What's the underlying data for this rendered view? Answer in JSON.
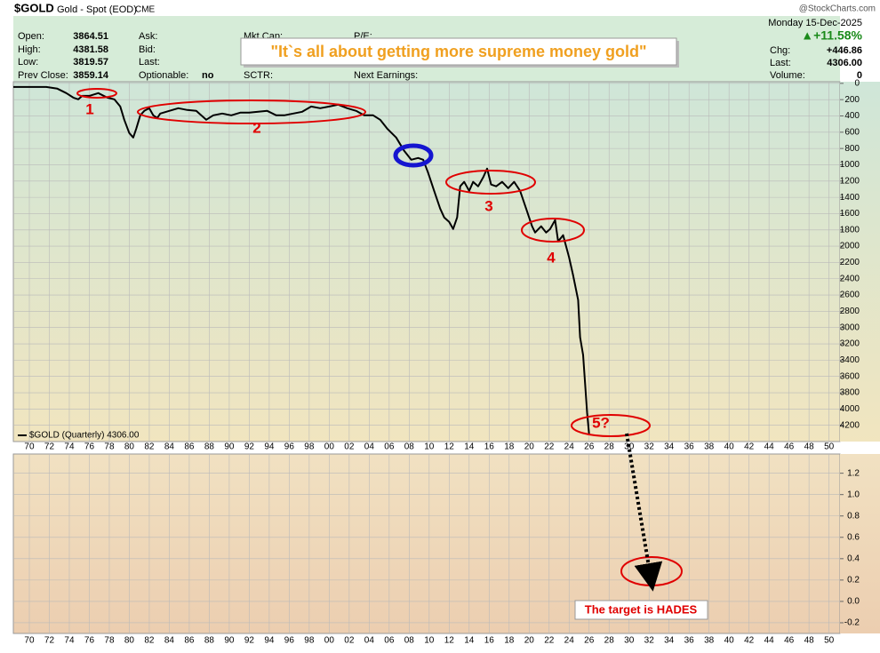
{
  "header": {
    "symbol": "$GOLD",
    "name": "Gold - Spot (EOD)",
    "exchange": "CME",
    "watermark": "@StockCharts.com",
    "date": "Monday  15-Dec-2025",
    "change_pct": "▲+11.58%",
    "open_label": "Open:",
    "open": "3864.51",
    "high_label": "High:",
    "high": "4381.58",
    "low_label": "Low:",
    "low": "3819.57",
    "prev_close_label": "Prev Close:",
    "prev_close": "3859.14",
    "ask_label": "Ask:",
    "bid_label": "Bid:",
    "last_label": "Last:",
    "optionable_label": "Optionable:",
    "optionable": "no",
    "mkt_cap_label": "Mkt Cap:",
    "sctr_label": "SCTR:",
    "pe_label": "P/E:",
    "next_earnings_label": "Next Earnings:",
    "chg_label": "Chg:",
    "chg": "+446.86",
    "last2_label": "Last:",
    "last": "4306.00",
    "volume_label": "Volume:",
    "volume": "0",
    "quote": "\"It`s all about getting more supreme money gold\""
  },
  "chart_data": [
    {
      "type": "line",
      "legend_text": "$GOLD (Quarterly) 4306.00",
      "annotations": [
        "1",
        "2",
        "3",
        "4",
        "5?"
      ],
      "x": [
        1968.4,
        1971.7,
        1972.8,
        1973.7,
        1974.4,
        1974.9,
        1975.3,
        1976.0,
        1976.9,
        1977.8,
        1978.5,
        1979.1,
        1979.5,
        1980.0,
        1980.4,
        1980.7,
        1981.1,
        1981.5,
        1982.0,
        1982.4,
        1982.8,
        1983.1,
        1984.0,
        1984.9,
        1985.8,
        1986.7,
        1987.7,
        1988.4,
        1989.3,
        1990.2,
        1991.1,
        1992.0,
        1992.9,
        1993.8,
        1994.7,
        1995.5,
        1996.4,
        1997.3,
        1998.2,
        1999.1,
        2000.0,
        2000.9,
        2001.8,
        2002.7,
        2003.5,
        2004.4,
        2005.1,
        2005.8,
        2006.7,
        2007.5,
        2008.2,
        2008.9,
        2009.4,
        2009.9,
        2010.5,
        2011.1,
        2011.5,
        2012.0,
        2012.4,
        2012.8,
        2013.1,
        2013.5,
        2014.0,
        2014.4,
        2014.9,
        2015.4,
        2015.8,
        2016.2,
        2016.7,
        2017.3,
        2017.9,
        2018.5,
        2019.1,
        2019.7,
        2020.3,
        2020.6,
        2021.2,
        2021.7,
        2022.1,
        2022.6,
        2022.9,
        2023.4,
        2024.0,
        2024.4,
        2024.9,
        2025.1,
        2025.4,
        2025.8,
        2026.0
      ],
      "series": [
        {
          "name": "$GOLD (Quarterly)",
          "color": "#000000",
          "values": [
            44,
            44,
            65,
            120,
            175,
            196,
            153,
            153,
            120,
            175,
            196,
            284,
            447,
            610,
            665,
            556,
            393,
            338,
            305,
            393,
            425,
            371,
            338,
            305,
            327,
            338,
            447,
            393,
            371,
            393,
            360,
            360,
            349,
            338,
            393,
            393,
            371,
            349,
            284,
            305,
            284,
            262,
            305,
            338,
            393,
            393,
            447,
            556,
            665,
            829,
            938,
            916,
            938,
            1101,
            1320,
            1538,
            1647,
            1701,
            1788,
            1647,
            1265,
            1210,
            1320,
            1210,
            1265,
            1156,
            1047,
            1243,
            1265,
            1210,
            1287,
            1210,
            1320,
            1538,
            1756,
            1832,
            1756,
            1832,
            1788,
            1679,
            1941,
            1865,
            2137,
            2355,
            2661,
            3119,
            3337,
            4046,
            4306
          ]
        }
      ],
      "xlim": [
        1968.4,
        2051.1
      ],
      "xticks": [
        {
          "value": 1970,
          "label": "70"
        },
        {
          "value": 1972,
          "label": "72"
        },
        {
          "value": 1974,
          "label": "74"
        },
        {
          "value": 1976,
          "label": "76"
        },
        {
          "value": 1978,
          "label": "78"
        },
        {
          "value": 1980,
          "label": "80"
        },
        {
          "value": 1982,
          "label": "82"
        },
        {
          "value": 1984,
          "label": "84"
        },
        {
          "value": 1986,
          "label": "86"
        },
        {
          "value": 1988,
          "label": "88"
        },
        {
          "value": 1990,
          "label": "90"
        },
        {
          "value": 1992,
          "label": "92"
        },
        {
          "value": 1994,
          "label": "94"
        },
        {
          "value": 1996,
          "label": "96"
        },
        {
          "value": 1998,
          "label": "98"
        },
        {
          "value": 2000,
          "label": "00"
        },
        {
          "value": 2002,
          "label": "02"
        },
        {
          "value": 2004,
          "label": "04"
        },
        {
          "value": 2006,
          "label": "06"
        },
        {
          "value": 2008,
          "label": "08"
        },
        {
          "value": 2010,
          "label": "10"
        },
        {
          "value": 2012,
          "label": "12"
        },
        {
          "value": 2014,
          "label": "14"
        },
        {
          "value": 2016,
          "label": "16"
        },
        {
          "value": 2018,
          "label": "18"
        },
        {
          "value": 2020,
          "label": "20"
        },
        {
          "value": 2022,
          "label": "22"
        },
        {
          "value": 2024,
          "label": "24"
        },
        {
          "value": 2026,
          "label": "26"
        },
        {
          "value": 2028,
          "label": "28"
        },
        {
          "value": 2030,
          "label": "30"
        },
        {
          "value": 2032,
          "label": "32"
        },
        {
          "value": 2034,
          "label": "34"
        },
        {
          "value": 2036,
          "label": "36"
        },
        {
          "value": 2038,
          "label": "38"
        },
        {
          "value": 2040,
          "label": "40"
        },
        {
          "value": 2042,
          "label": "42"
        },
        {
          "value": 2044,
          "label": "44"
        },
        {
          "value": 2046,
          "label": "46"
        },
        {
          "value": 2048,
          "label": "48"
        },
        {
          "value": 2050,
          "label": "50"
        }
      ],
      "ylim": [
        4400,
        -20
      ],
      "yticks": [
        0,
        200,
        400,
        600,
        800,
        1000,
        1200,
        1400,
        1600,
        1800,
        2000,
        2200,
        2400,
        2600,
        2800,
        3000,
        3200,
        3400,
        3600,
        3800,
        4000,
        4200
      ],
      "grid": true
    },
    {
      "type": "line",
      "annotations": [
        "The target is HADES"
      ],
      "series": [],
      "ylim": [
        -0.3,
        1.38
      ],
      "yticks": [
        {
          "value": -0.2,
          "label": "-0.2"
        },
        {
          "value": 0,
          "label": "0.0"
        },
        {
          "value": 0.2,
          "label": "0.2"
        },
        {
          "value": 0.4,
          "label": "0.4"
        },
        {
          "value": 0.6,
          "label": "0.6"
        },
        {
          "value": 0.8,
          "label": "0.8"
        },
        {
          "value": 1,
          "label": "1.0"
        },
        {
          "value": 1.2,
          "label": "1.2"
        }
      ],
      "grid": true
    }
  ]
}
